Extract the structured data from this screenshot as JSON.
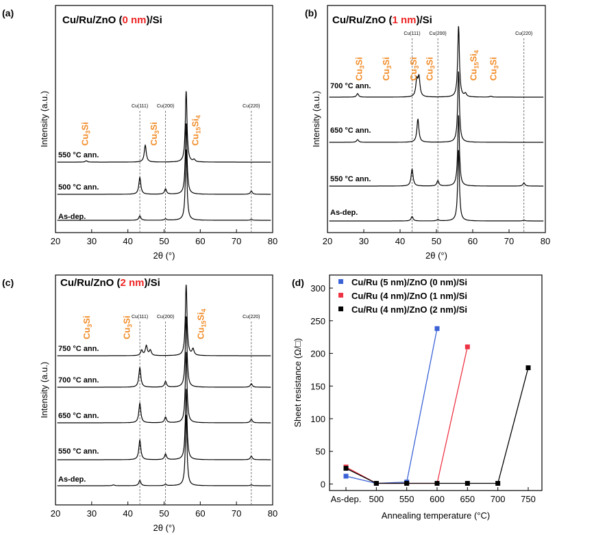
{
  "colors": {
    "axis": "#000000",
    "phase": "#f28c28",
    "highlight": "#ee2222",
    "guide": "#555555",
    "series_blue": "#3a62d6",
    "series_red": "#ee3344",
    "series_black": "#000000"
  },
  "chart_data": [
    {
      "panel": "(a)",
      "type": "line",
      "title_parts": [
        "Cu/Ru/ZnO (",
        "0 nm",
        ")/Si"
      ],
      "xlabel": "2θ (°)",
      "ylabel": "Intensity (a.u.)",
      "xlim": [
        20,
        80
      ],
      "xticks": [
        20,
        30,
        40,
        50,
        60,
        70,
        80
      ],
      "reference_lines": [
        {
          "label": "Cu(111)",
          "x": 43.3
        },
        {
          "label": "Cu(200)",
          "x": 50.4
        },
        {
          "label": "Cu(220)",
          "x": 74.1
        }
      ],
      "phase_labels": [
        {
          "base": "Cu",
          "sub": "3",
          "tail": "Si",
          "x": 29.0,
          "trace": "550 °C ann."
        },
        {
          "base": "Cu",
          "sub": "3",
          "tail": "Si",
          "x": 48.0,
          "trace": "550 °C ann."
        },
        {
          "base": "Cu",
          "sub": "15",
          "tail": "Si",
          "sub2": "4",
          "x": 59.5,
          "trace": "550 °C ann."
        }
      ],
      "series": [
        {
          "name": "As-dep.",
          "peaks": [
            {
              "x": 43.3,
              "h": 0.25
            },
            {
              "x": 50.4,
              "h": 0.08
            },
            {
              "x": 56.1,
              "h": 4.0
            },
            {
              "x": 74.1,
              "h": 0.05
            }
          ]
        },
        {
          "name": "500 °C ann.",
          "peaks": [
            {
              "x": 43.3,
              "h": 0.95
            },
            {
              "x": 50.4,
              "h": 0.3
            },
            {
              "x": 56.1,
              "h": 4.0
            },
            {
              "x": 74.1,
              "h": 0.18
            }
          ]
        },
        {
          "name": "550 °C ann.",
          "peaks": [
            {
              "x": 28.5,
              "h": 0.08
            },
            {
              "x": 44.8,
              "h": 0.95
            },
            {
              "x": 56.1,
              "h": 4.0
            },
            {
              "x": 58.3,
              "h": 0.12
            }
          ]
        }
      ]
    },
    {
      "panel": "(b)",
      "type": "line",
      "title_parts": [
        "Cu/Ru/ZnO (",
        "1 nm",
        ")/Si"
      ],
      "xlabel": "2θ (°)",
      "ylabel": "Intensity (a.u.)",
      "xlim": [
        20,
        80
      ],
      "xticks": [
        20,
        30,
        40,
        50,
        60,
        70,
        80
      ],
      "reference_lines": [
        {
          "label": "Cu(111)",
          "x": 43.3
        },
        {
          "label": "Cu(200)",
          "x": 50.4
        },
        {
          "label": "Cu(220)",
          "x": 74.1
        }
      ],
      "phase_labels": [
        {
          "base": "Cu",
          "sub": "3",
          "tail": "Si",
          "x": 29.5,
          "trace": "700 °C ann."
        },
        {
          "base": "Cu",
          "sub": "3",
          "tail": "Si",
          "x": 37.0,
          "trace": "700 °C ann."
        },
        {
          "base": "Cu",
          "sub": "3",
          "tail": "Si",
          "x": 44.5,
          "trace": "700 °C ann."
        },
        {
          "base": "Cu",
          "sub": "3",
          "tail": "Si",
          "x": 49.0,
          "trace": "700 °C ann."
        },
        {
          "base": "Cu",
          "sub": "15",
          "tail": "Si",
          "sub2": "4",
          "x": 61.0,
          "trace": "700 °C ann."
        },
        {
          "base": "Cu",
          "sub": "3",
          "tail": "Si",
          "x": 66.5,
          "trace": "700 °C ann."
        }
      ],
      "series": [
        {
          "name": "As-dep.",
          "peaks": [
            {
              "x": 43.3,
              "h": 0.25
            },
            {
              "x": 50.4,
              "h": 0.08
            },
            {
              "x": 56.1,
              "h": 4.0
            },
            {
              "x": 74.1,
              "h": 0.05
            }
          ]
        },
        {
          "name": "550 °C ann.",
          "peaks": [
            {
              "x": 43.3,
              "h": 0.95
            },
            {
              "x": 50.4,
              "h": 0.3
            },
            {
              "x": 56.1,
              "h": 4.0
            },
            {
              "x": 74.1,
              "h": 0.18
            }
          ]
        },
        {
          "name": "650 °C ann.",
          "peaks": [
            {
              "x": 28.3,
              "h": 0.15
            },
            {
              "x": 44.9,
              "h": 1.3
            },
            {
              "x": 56.1,
              "h": 4.0
            }
          ]
        },
        {
          "name": "700 °C ann.",
          "peaks": [
            {
              "x": 28.3,
              "h": 0.2
            },
            {
              "x": 44.6,
              "h": 0.9
            },
            {
              "x": 45.2,
              "h": 1.05
            },
            {
              "x": 56.1,
              "h": 4.0
            },
            {
              "x": 58.0,
              "h": 0.18
            },
            {
              "x": 65.0,
              "h": 0.05
            }
          ]
        }
      ]
    },
    {
      "panel": "(c)",
      "type": "line",
      "title_parts": [
        "Cu/Ru/ZnO (",
        "2 nm",
        ")/Si"
      ],
      "xlabel": "2θ (°)",
      "ylabel": "Intensity (a.u.)",
      "xlim": [
        20,
        80
      ],
      "xticks": [
        20,
        30,
        40,
        50,
        60,
        70,
        80
      ],
      "reference_lines": [
        {
          "label": "Cu(111)",
          "x": 43.3
        },
        {
          "label": "Cu(200)",
          "x": 50.4
        },
        {
          "label": "Cu(220)",
          "x": 74.1
        }
      ],
      "phase_labels": [
        {
          "base": "Cu",
          "sub": "3",
          "tail": "Si",
          "x": 29.5,
          "trace": "750 °C ann."
        },
        {
          "base": "Cu",
          "sub": "3",
          "tail": "Si",
          "x": 40.5,
          "trace": "750 °C ann."
        },
        {
          "base": "Cu",
          "sub": "15",
          "tail": "Si",
          "sub2": "4",
          "x": 61.0,
          "trace": "750 °C ann."
        }
      ],
      "series": [
        {
          "name": "As-dep.",
          "peaks": [
            {
              "x": 36.0,
              "h": 0.05
            },
            {
              "x": 43.3,
              "h": 0.3
            },
            {
              "x": 50.4,
              "h": 0.08
            },
            {
              "x": 56.1,
              "h": 4.0
            },
            {
              "x": 74.1,
              "h": 0.05
            }
          ]
        },
        {
          "name": "550 °C ann.",
          "peaks": [
            {
              "x": 43.3,
              "h": 1.1
            },
            {
              "x": 50.4,
              "h": 0.32
            },
            {
              "x": 56.1,
              "h": 4.0
            },
            {
              "x": 74.1,
              "h": 0.2
            }
          ]
        },
        {
          "name": "650 °C ann.",
          "peaks": [
            {
              "x": 43.3,
              "h": 1.1
            },
            {
              "x": 50.4,
              "h": 0.32
            },
            {
              "x": 56.1,
              "h": 4.0
            },
            {
              "x": 74.1,
              "h": 0.2
            }
          ]
        },
        {
          "name": "700 °C ann.",
          "peaks": [
            {
              "x": 43.3,
              "h": 1.1
            },
            {
              "x": 50.4,
              "h": 0.32
            },
            {
              "x": 56.1,
              "h": 4.0
            },
            {
              "x": 74.1,
              "h": 0.2
            }
          ]
        },
        {
          "name": "750 °C ann.",
          "peaks": [
            {
              "x": 43.8,
              "h": 0.3
            },
            {
              "x": 45.1,
              "h": 0.55
            },
            {
              "x": 46.2,
              "h": 0.3
            },
            {
              "x": 56.1,
              "h": 4.0
            },
            {
              "x": 58.0,
              "h": 0.35
            }
          ]
        }
      ]
    },
    {
      "panel": "(d)",
      "type": "line",
      "xlabel": "Annealing temperature (°C)",
      "ylabel": "Sheet resistance (Ω/□)",
      "categories": [
        "As-dep.",
        "500",
        "550",
        "600",
        "650",
        "700",
        "750"
      ],
      "ylim": [
        -10,
        320
      ],
      "yticks": [
        0,
        50,
        100,
        150,
        200,
        250,
        300
      ],
      "legend_position": "top-left",
      "series": [
        {
          "name": "Cu/Ru (5 nm)/ZnO (0 nm)/Si",
          "color": "#3a62d6",
          "points": [
            [
              "As-dep.",
              12
            ],
            [
              "500",
              1
            ],
            [
              "550",
              3
            ],
            [
              "600",
              238
            ]
          ]
        },
        {
          "name": "Cu/Ru (4 nm)/ZnO (1 nm)/Si",
          "color": "#ee3344",
          "points": [
            [
              "As-dep.",
              26
            ],
            [
              "500",
              1
            ],
            [
              "550",
              1
            ],
            [
              "600",
              1
            ],
            [
              "650",
              210
            ]
          ]
        },
        {
          "name": "Cu/Ru (4 nm)/ZnO (2 nm)/Si",
          "color": "#000000",
          "points": [
            [
              "As-dep.",
              24
            ],
            [
              "500",
              1
            ],
            [
              "550",
              1
            ],
            [
              "600",
              1
            ],
            [
              "650",
              1
            ],
            [
              "700",
              1
            ],
            [
              "750",
              178
            ]
          ]
        }
      ]
    }
  ]
}
